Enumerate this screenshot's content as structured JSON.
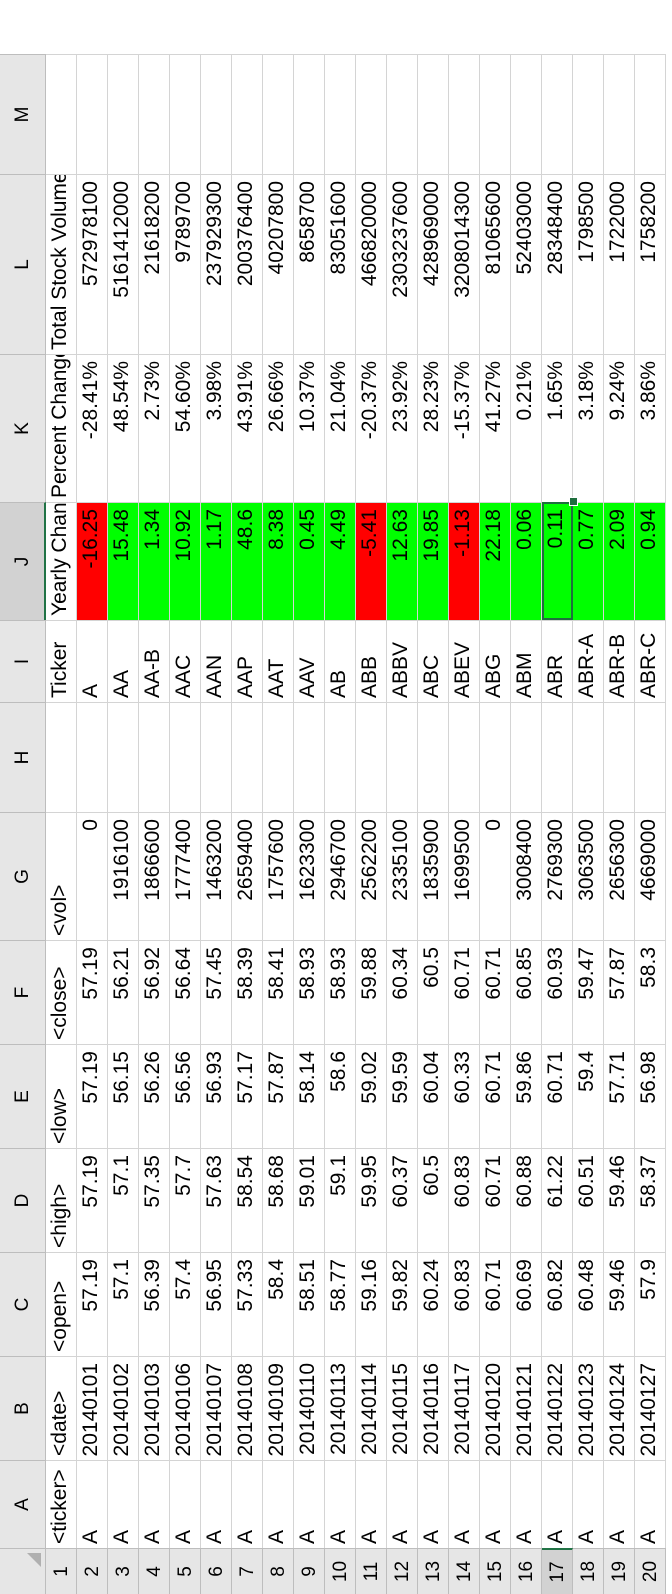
{
  "columns": [
    "A",
    "B",
    "C",
    "D",
    "E",
    "F",
    "G",
    "H",
    "I",
    "J",
    "K",
    "L",
    "M"
  ],
  "active_column": "J",
  "row_numbers": [
    "1",
    "2",
    "3",
    "4",
    "5",
    "6",
    "7",
    "8",
    "9",
    "10",
    "11",
    "12",
    "13",
    "14",
    "15",
    "16",
    "17",
    "18",
    "19",
    "20"
  ],
  "active_row": "17",
  "headers": [
    "<ticker>",
    "<date>",
    "<open>",
    "<high>",
    "<low>",
    "<close>",
    "<vol>",
    "",
    "Ticker",
    "Yearly Change",
    "Percent Change",
    "Total Stock Volume",
    ""
  ],
  "rows": [
    [
      "A",
      "20140101",
      "57.19",
      "57.19",
      "57.19",
      "57.19",
      "0",
      "",
      "A",
      "-16.25",
      "-28.41%",
      "572978100",
      ""
    ],
    [
      "A",
      "20140102",
      "57.1",
      "57.1",
      "56.15",
      "56.21",
      "1916100",
      "",
      "AA",
      "15.48",
      "48.54%",
      "5161412000",
      ""
    ],
    [
      "A",
      "20140103",
      "56.39",
      "57.35",
      "56.26",
      "56.92",
      "1866600",
      "",
      "AA-B",
      "1.34",
      "2.73%",
      "21618200",
      ""
    ],
    [
      "A",
      "20140106",
      "57.4",
      "57.7",
      "56.56",
      "56.64",
      "1777400",
      "",
      "AAC",
      "10.92",
      "54.60%",
      "9789700",
      ""
    ],
    [
      "A",
      "20140107",
      "56.95",
      "57.63",
      "56.93",
      "57.45",
      "1463200",
      "",
      "AAN",
      "1.17",
      "3.98%",
      "237929300",
      ""
    ],
    [
      "A",
      "20140108",
      "57.33",
      "58.54",
      "57.17",
      "58.39",
      "2659400",
      "",
      "AAP",
      "48.6",
      "43.91%",
      "200376400",
      ""
    ],
    [
      "A",
      "20140109",
      "58.4",
      "58.68",
      "57.87",
      "58.41",
      "1757600",
      "",
      "AAT",
      "8.38",
      "26.66%",
      "40207800",
      ""
    ],
    [
      "A",
      "20140110",
      "58.51",
      "59.01",
      "58.14",
      "58.93",
      "1623300",
      "",
      "AAV",
      "0.45",
      "10.37%",
      "8658700",
      ""
    ],
    [
      "A",
      "20140113",
      "58.77",
      "59.1",
      "58.6",
      "58.93",
      "2946700",
      "",
      "AB",
      "4.49",
      "21.04%",
      "83051600",
      ""
    ],
    [
      "A",
      "20140114",
      "59.16",
      "59.95",
      "59.02",
      "59.88",
      "2562200",
      "",
      "ABB",
      "-5.41",
      "-20.37%",
      "466820000",
      ""
    ],
    [
      "A",
      "20140115",
      "59.82",
      "60.37",
      "59.59",
      "60.34",
      "2335100",
      "",
      "ABBV",
      "12.63",
      "23.92%",
      "2303237600",
      ""
    ],
    [
      "A",
      "20140116",
      "60.24",
      "60.5",
      "60.04",
      "60.5",
      "1835900",
      "",
      "ABC",
      "19.85",
      "28.23%",
      "428969000",
      ""
    ],
    [
      "A",
      "20140117",
      "60.83",
      "60.83",
      "60.33",
      "60.71",
      "1699500",
      "",
      "ABEV",
      "-1.13",
      "-15.37%",
      "3208014300",
      ""
    ],
    [
      "A",
      "20140120",
      "60.71",
      "60.71",
      "60.71",
      "60.71",
      "0",
      "",
      "ABG",
      "22.18",
      "41.27%",
      "81065600",
      ""
    ],
    [
      "A",
      "20140121",
      "60.69",
      "60.88",
      "59.86",
      "60.85",
      "3008400",
      "",
      "ABM",
      "0.06",
      "0.21%",
      "52403000",
      ""
    ],
    [
      "A",
      "20140122",
      "60.82",
      "61.22",
      "60.71",
      "60.93",
      "2769300",
      "",
      "ABR",
      "0.11",
      "1.65%",
      "28348400",
      ""
    ],
    [
      "A",
      "20140123",
      "60.48",
      "60.51",
      "59.4",
      "59.47",
      "3063500",
      "",
      "ABR-A",
      "0.77",
      "3.18%",
      "1798500",
      ""
    ],
    [
      "A",
      "20140124",
      "59.46",
      "59.46",
      "57.71",
      "57.87",
      "2656300",
      "",
      "ABR-B",
      "2.09",
      "9.24%",
      "1722000",
      ""
    ],
    [
      "A",
      "20140127",
      "57.9",
      "58.37",
      "56.98",
      "58.3",
      "4669000",
      "",
      "ABR-C",
      "0.94",
      "3.86%",
      "1758200",
      ""
    ]
  ],
  "colors": {
    "negative_fill": "#ff0000",
    "positive_fill": "#00ff00",
    "selection": "#1e6e3e",
    "header_bg": "#e6e6e6"
  }
}
